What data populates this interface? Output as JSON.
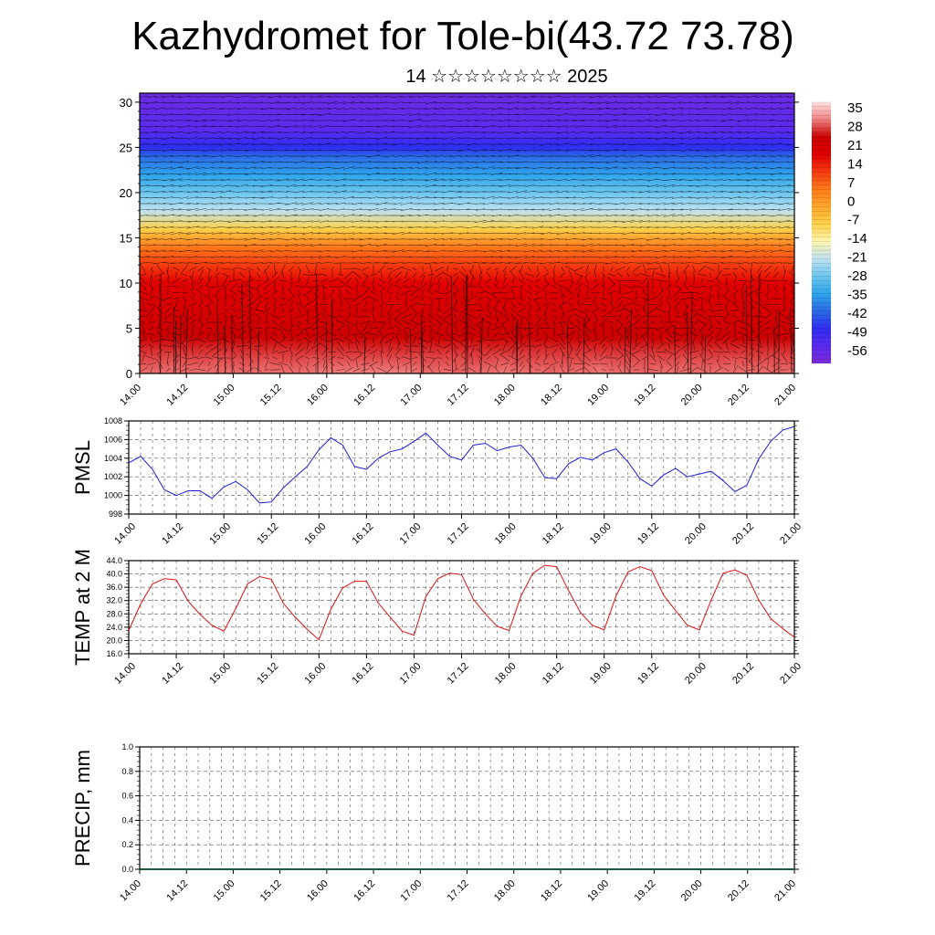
{
  "header": {
    "title": "Kazhydromet for Tole-bi(43.72 73.78)",
    "subtitle": "14 ☆☆☆☆☆☆☆☆ 2025"
  },
  "colors": {
    "pmsl_line": "#1f1fd6",
    "temp_line": "#e01414",
    "precip_line": "#1a5c3a",
    "grid": "#555555"
  },
  "chart_data": [
    {
      "type": "heatmap",
      "name": "upper-air-section",
      "x_tick_labels": [
        "14.00",
        "14.12",
        "15.00",
        "15.12",
        "16.00",
        "16.12",
        "17.00",
        "17.12",
        "18.00",
        "18.12",
        "19.00",
        "19.12",
        "20.00",
        "20.12",
        "21.00"
      ],
      "y_ticks": [
        0,
        5,
        10,
        15,
        20,
        25,
        30
      ],
      "ylim": [
        0,
        31
      ],
      "colorbar_labels": [
        "35",
        "28",
        "21",
        "14",
        "7",
        "0",
        "-7",
        "-14",
        "-21",
        "-28",
        "-35",
        "-42",
        "-49",
        "-56"
      ],
      "colorbar_range": [
        -63,
        42
      ],
      "overlay": "wind vectors",
      "profile": [
        {
          "z": 0,
          "value": 35
        },
        {
          "z": 4,
          "value": 28
        },
        {
          "z": 10,
          "value": 21
        },
        {
          "z": 12,
          "value": 14
        },
        {
          "z": 14,
          "value": 7
        },
        {
          "z": 16,
          "value": -7
        },
        {
          "z": 18,
          "value": -21
        },
        {
          "z": 20,
          "value": -28
        },
        {
          "z": 22,
          "value": -35
        },
        {
          "z": 24,
          "value": -42
        },
        {
          "z": 25,
          "value": -49
        },
        {
          "z": 27,
          "value": -56
        },
        {
          "z": 31,
          "value": -60
        }
      ],
      "warm_cores_days": [
        0.1,
        0.6,
        1.1,
        1.6,
        3.2,
        3.6,
        4.2,
        4.6,
        5.2,
        5.6,
        6.1,
        6.6,
        7.0
      ]
    },
    {
      "type": "line",
      "name": "pmsl",
      "ylabel": "PMSL",
      "x_tick_labels": [
        "14.00",
        "14.12",
        "15.00",
        "15.12",
        "16.00",
        "16.12",
        "17.00",
        "17.12",
        "18.00",
        "18.12",
        "19.00",
        "19.12",
        "20.00",
        "20.12",
        "21.00"
      ],
      "y_ticks": [
        "998",
        "1000",
        "1002",
        "1004",
        "1006",
        "1008"
      ],
      "ylim": [
        998,
        1008
      ],
      "grid": true,
      "series": [
        {
          "x_days": [
            0,
            0.125,
            0.25,
            0.375,
            0.5,
            0.625,
            0.75,
            0.875,
            1,
            1.125,
            1.25,
            1.375,
            1.5,
            1.625,
            1.75,
            1.875,
            2,
            2.125,
            2.25,
            2.375,
            2.5,
            2.625,
            2.75,
            2.875,
            3,
            3.125,
            3.25,
            3.375,
            3.5,
            3.625,
            3.75,
            3.875,
            4,
            4.125,
            4.25,
            4.375,
            4.5,
            4.625,
            4.75,
            4.875,
            5,
            5.125,
            5.25,
            5.375,
            5.5,
            5.625,
            5.75,
            5.875,
            6,
            6.125,
            6.25,
            6.375,
            6.5,
            6.625,
            6.75,
            6.875,
            7
          ],
          "values": [
            1003.5,
            1004.2,
            1002.8,
            1000.6,
            1000.0,
            1000.5,
            1000.5,
            999.7,
            1000.9,
            1001.5,
            1000.6,
            999.2,
            999.3,
            1000.8,
            1002.0,
            1003.1,
            1004.9,
            1006.2,
            1005.4,
            1003.1,
            1002.8,
            1004.0,
            1004.7,
            1005.0,
            1005.8,
            1006.7,
            1005.4,
            1004.2,
            1003.8,
            1005.4,
            1005.6,
            1004.8,
            1005.2,
            1005.4,
            1004.0,
            1001.9,
            1001.8,
            1003.4,
            1004.1,
            1003.8,
            1004.6,
            1005.0,
            1003.6,
            1001.8,
            1001.0,
            1002.2,
            1002.9,
            1002.0,
            1002.3,
            1002.6,
            1001.6,
            1000.4,
            1001.1,
            1003.9,
            1005.8,
            1007.0,
            1007.4
          ]
        }
      ]
    },
    {
      "type": "line",
      "name": "temp-2m",
      "ylabel": "TEMP at 2 M",
      "x_tick_labels": [
        "14.00",
        "14.12",
        "15.00",
        "15.12",
        "16.00",
        "16.12",
        "17.00",
        "17.12",
        "18.00",
        "18.12",
        "19.00",
        "19.12",
        "20.00",
        "20.12",
        "21.00"
      ],
      "y_ticks": [
        "16.0",
        "20.0",
        "24.0",
        "28.0",
        "32.0",
        "36.0",
        "40.0",
        "44.0"
      ],
      "ylim": [
        16,
        44
      ],
      "grid": true,
      "series": [
        {
          "x_days": [
            0,
            0.125,
            0.25,
            0.375,
            0.5,
            0.625,
            0.75,
            0.875,
            1,
            1.125,
            1.25,
            1.375,
            1.5,
            1.625,
            1.75,
            1.875,
            2,
            2.125,
            2.25,
            2.375,
            2.5,
            2.625,
            2.75,
            2.875,
            3,
            3.125,
            3.25,
            3.375,
            3.5,
            3.625,
            3.75,
            3.875,
            4,
            4.125,
            4.25,
            4.375,
            4.5,
            4.625,
            4.75,
            4.875,
            5,
            5.125,
            5.25,
            5.375,
            5.5,
            5.625,
            5.75,
            5.875,
            6,
            6.125,
            6.25,
            6.375,
            6.5,
            6.625,
            6.75,
            6.875,
            7
          ],
          "values": [
            23.0,
            31.0,
            37.0,
            38.6,
            38.2,
            31.8,
            27.8,
            24.6,
            22.8,
            29.6,
            37.0,
            39.2,
            38.4,
            31.2,
            27.0,
            23.4,
            20.2,
            29.4,
            35.8,
            37.8,
            37.8,
            31.2,
            27.0,
            22.8,
            21.6,
            33.2,
            38.6,
            40.2,
            39.8,
            32.4,
            28.0,
            24.2,
            23.0,
            33.4,
            40.2,
            42.6,
            42.2,
            35.0,
            28.4,
            24.6,
            23.2,
            33.4,
            40.6,
            42.2,
            41.0,
            33.6,
            29.0,
            24.6,
            23.2,
            32.2,
            40.2,
            41.2,
            39.6,
            32.2,
            26.6,
            23.6,
            21.0
          ]
        }
      ]
    },
    {
      "type": "line",
      "name": "precip",
      "ylabel": "PRECIP, mm",
      "x_tick_labels": [
        "14.00",
        "14.12",
        "15.00",
        "15.12",
        "16.00",
        "16.12",
        "17.00",
        "17.12",
        "18.00",
        "18.12",
        "19.00",
        "19.12",
        "20.00",
        "20.12",
        "21.00"
      ],
      "y_ticks": [
        "0.0",
        "0.2",
        "0.4",
        "0.6",
        "0.8",
        "1.0"
      ],
      "ylim": [
        0,
        1
      ],
      "grid": true,
      "series": [
        {
          "x_days": [
            0,
            7
          ],
          "values": [
            0.0,
            0.0
          ]
        }
      ]
    }
  ]
}
